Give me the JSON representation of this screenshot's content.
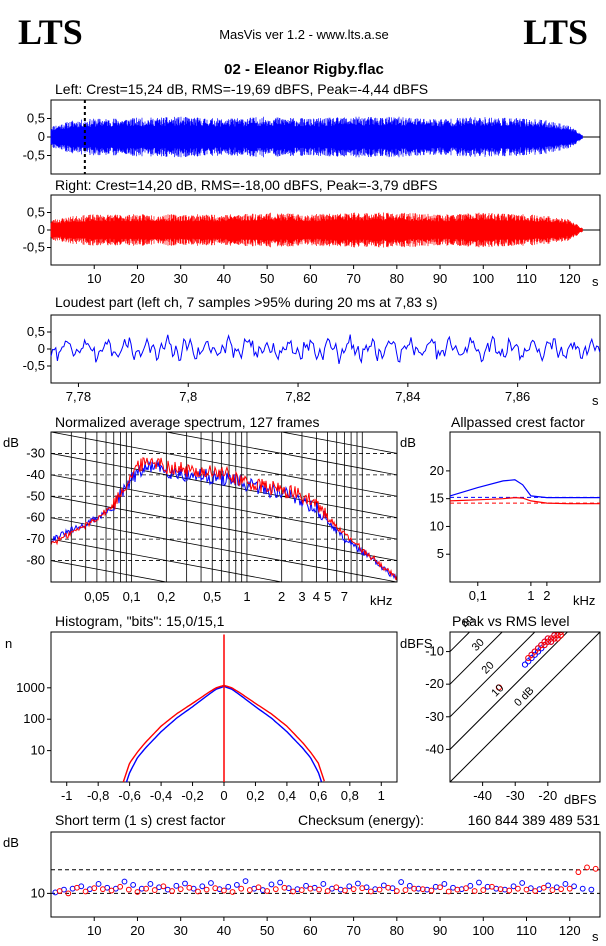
{
  "header": {
    "logo_left": "LTS",
    "logo_right": "LTS",
    "app_title": "MasVis ver 1.2 - www.lts.a.se",
    "file_title": "02 - Eleanor Rigby.flac"
  },
  "colors": {
    "left": "#0000ff",
    "right": "#ff0000",
    "grid": "#000000"
  },
  "chart_data": [
    {
      "id": "left-waveform",
      "type": "line",
      "title": "Left: Crest=15,24 dB, RMS=-19,69 dBFS, Peak=-4,44 dBFS",
      "xlim": [
        0,
        127
      ],
      "ylim": [
        -1,
        1
      ],
      "yticks": [
        0.5,
        0,
        -0.5
      ],
      "ytick_labels": [
        "0,5",
        "0",
        "-0,5"
      ],
      "marker_x": 7.83,
      "duration_s": 123,
      "envelope_x": [
        0,
        5,
        10,
        20,
        30,
        40,
        50,
        60,
        70,
        80,
        90,
        100,
        110,
        115,
        120,
        123
      ],
      "envelope_y": [
        0.3,
        0.45,
        0.5,
        0.52,
        0.55,
        0.5,
        0.55,
        0.5,
        0.55,
        0.55,
        0.5,
        0.55,
        0.5,
        0.45,
        0.3,
        0.05
      ]
    },
    {
      "id": "right-waveform",
      "type": "line",
      "title": "Right: Crest=14,20 dB, RMS=-18,00 dBFS, Peak=-3,79 dBFS",
      "xlim": [
        0,
        127
      ],
      "ylim": [
        -1,
        1
      ],
      "yticks": [
        0.5,
        0,
        -0.5
      ],
      "ytick_labels": [
        "0,5",
        "0",
        "-0,5"
      ],
      "xticks": [
        10,
        20,
        30,
        40,
        50,
        60,
        70,
        80,
        90,
        100,
        110,
        120
      ],
      "x_unit": "s",
      "duration_s": 123,
      "envelope_x": [
        0,
        5,
        10,
        20,
        30,
        40,
        50,
        60,
        70,
        80,
        90,
        100,
        110,
        115,
        120,
        123
      ],
      "envelope_y": [
        0.3,
        0.4,
        0.45,
        0.45,
        0.45,
        0.45,
        0.5,
        0.45,
        0.5,
        0.5,
        0.45,
        0.5,
        0.45,
        0.4,
        0.3,
        0.05
      ]
    },
    {
      "id": "loudest-part",
      "type": "line",
      "title": "Loudest part (left  ch, 7 samples >95% during 20 ms at 7,83 s)",
      "xlim": [
        7.775,
        7.875
      ],
      "ylim": [
        -1,
        1
      ],
      "yticks": [
        0.5,
        0,
        -0.5
      ],
      "ytick_labels": [
        "0,5",
        "0",
        "-0,5"
      ],
      "xticks": [
        7.78,
        7.8,
        7.82,
        7.84,
        7.86
      ],
      "xtick_labels": [
        "7,78",
        "7,8",
        "7,82",
        "7,84",
        "7,86"
      ],
      "x_unit": "s",
      "amplitude": 0.3
    },
    {
      "id": "spectrum",
      "type": "line",
      "title": "Normalized average spectrum, 127 frames",
      "y_unit": "dB",
      "x_unit": "kHz",
      "x_scale": "log",
      "xlim": [
        0.02,
        20
      ],
      "ylim": [
        -90,
        -20
      ],
      "yticks": [
        -30,
        -40,
        -50,
        -60,
        -70,
        -80
      ],
      "xticks": [
        0.05,
        0.1,
        0.2,
        0.5,
        1,
        2,
        3,
        4,
        5,
        7
      ],
      "xtick_labels": [
        "0,05",
        "0,1",
        "0,2",
        "0,5",
        "1",
        "2",
        "3",
        "4",
        "5",
        "7"
      ],
      "series": [
        {
          "channel": "left",
          "x": [
            0.02,
            0.03,
            0.05,
            0.07,
            0.08,
            0.1,
            0.12,
            0.15,
            0.2,
            0.3,
            0.5,
            0.7,
            1,
            1.5,
            2,
            3,
            4,
            5,
            7,
            10,
            15,
            20
          ],
          "y": [
            -70,
            -66,
            -60,
            -55,
            -50,
            -42,
            -38,
            -36,
            -38,
            -40,
            -41,
            -42,
            -45,
            -47,
            -48,
            -52,
            -56,
            -62,
            -70,
            -76,
            -84,
            -88
          ]
        },
        {
          "channel": "right",
          "x": [
            0.02,
            0.03,
            0.05,
            0.07,
            0.08,
            0.1,
            0.12,
            0.15,
            0.2,
            0.3,
            0.5,
            0.7,
            1,
            1.5,
            2,
            3,
            4,
            5,
            7,
            10,
            15,
            20
          ],
          "y": [
            -72,
            -67,
            -60,
            -54,
            -48,
            -40,
            -35,
            -33,
            -36,
            -38,
            -39,
            -40,
            -44,
            -46,
            -47,
            -50,
            -54,
            -60,
            -68,
            -75,
            -83,
            -88
          ]
        }
      ]
    },
    {
      "id": "allpassed-crest",
      "type": "line",
      "title": "Allpassed crest factor",
      "y_unit": "dB",
      "x_unit": "kHz",
      "x_scale": "log",
      "xlim": [
        0.03,
        20
      ],
      "ylim": [
        0,
        27
      ],
      "yticks": [
        20,
        15,
        10,
        5
      ],
      "xticks": [
        0.1,
        1,
        2
      ],
      "xtick_labels": [
        "0,1",
        "1",
        "2"
      ],
      "reference_left": 15.24,
      "reference_right": 14.2,
      "series": [
        {
          "channel": "left",
          "x": [
            0.03,
            0.1,
            0.3,
            0.5,
            0.7,
            1,
            2,
            5,
            20
          ],
          "y": [
            15.5,
            17,
            18.2,
            18.4,
            17.5,
            15.5,
            15.2,
            15.2,
            15.2
          ]
        },
        {
          "channel": "right",
          "x": [
            0.03,
            0.1,
            0.3,
            0.5,
            0.7,
            1,
            2,
            5,
            20
          ],
          "y": [
            14.6,
            14.8,
            15,
            15.2,
            15.1,
            14.6,
            14.2,
            14.1,
            14.1
          ]
        }
      ]
    },
    {
      "id": "histogram",
      "type": "line",
      "title": "Histogram, \"bits\": 15,0/15,1",
      "y_unit": "n",
      "y_scale": "log",
      "xlim": [
        -1.1,
        1.1
      ],
      "ylim": [
        1,
        60000
      ],
      "yticks": [
        1000,
        100,
        10
      ],
      "xticks": [
        -1,
        -0.8,
        -0.6,
        -0.4,
        -0.2,
        0,
        0.2,
        0.4,
        0.6,
        0.8,
        1
      ],
      "xtick_labels": [
        "-1",
        "-0,8",
        "-0,6",
        "-0,4",
        "-0,2",
        "0",
        "0,2",
        "0,4",
        "0,6",
        "0,8",
        "1"
      ],
      "series": [
        {
          "channel": "left",
          "x": [
            -0.62,
            -0.6,
            -0.55,
            -0.5,
            -0.4,
            -0.3,
            -0.2,
            -0.1,
            -0.05,
            0,
            0.05,
            0.1,
            0.2,
            0.3,
            0.4,
            0.5,
            0.55,
            0.6,
            0.62
          ],
          "y": [
            1,
            2,
            6,
            12,
            40,
            110,
            250,
            600,
            900,
            1100,
            900,
            600,
            250,
            110,
            40,
            12,
            6,
            2,
            1
          ]
        },
        {
          "channel": "right",
          "x": [
            -0.64,
            -0.6,
            -0.55,
            -0.5,
            -0.4,
            -0.3,
            -0.2,
            -0.1,
            -0.05,
            0,
            0.05,
            0.1,
            0.2,
            0.3,
            0.4,
            0.5,
            0.55,
            0.6,
            0.64
          ],
          "y": [
            1,
            4,
            9,
            18,
            60,
            150,
            320,
            700,
            1000,
            1200,
            1000,
            700,
            320,
            150,
            60,
            18,
            9,
            4,
            1
          ]
        }
      ],
      "zero_spike": 50000
    },
    {
      "id": "peak-vs-rms",
      "type": "scatter",
      "title": "Peak vs RMS level",
      "y_unit": "dBFS",
      "x_unit": "dBFS",
      "xlim": [
        -50,
        -4
      ],
      "ylim": [
        -50,
        -4
      ],
      "yticks": [
        -10,
        -20,
        -30,
        -40
      ],
      "xticks": [
        -40,
        -30,
        -20
      ],
      "diagonal_labels": [
        "40",
        "30",
        "20",
        "10",
        "0 dB"
      ],
      "diagonal_offsets": [
        40,
        30,
        20,
        10,
        0
      ],
      "series": [
        {
          "channel": "left",
          "x": [
            -27,
            -26,
            -25,
            -25,
            -24,
            -24,
            -23,
            -23,
            -22,
            -22,
            -21,
            -21,
            -20,
            -20,
            -19,
            -19,
            -18,
            -18,
            -17
          ],
          "y": [
            -14,
            -13,
            -12,
            -11,
            -11,
            -10,
            -10,
            -9,
            -9,
            -8,
            -8,
            -7,
            -7,
            -6,
            -6,
            -7,
            -6,
            -5,
            -5
          ]
        },
        {
          "channel": "right",
          "x": [
            -35,
            -26,
            -25,
            -24,
            -23,
            -22,
            -21,
            -21,
            -20,
            -20,
            -19,
            -19,
            -18,
            -18,
            -17,
            -17,
            -16,
            -16
          ],
          "y": [
            -21,
            -12,
            -11,
            -10,
            -9,
            -8,
            -8,
            -7,
            -7,
            -6,
            -6,
            -7,
            -6,
            -5,
            -5,
            -6,
            -5,
            -4
          ]
        }
      ]
    },
    {
      "id": "short-term-crest",
      "type": "scatter",
      "title": "Short term (1 s) crest factor",
      "checksum_label": "Checksum (energy):",
      "checksum_value": "160 844 389 489 531",
      "y_unit": "dB",
      "x_unit": "s",
      "xlim": [
        0,
        127
      ],
      "ylim": [
        5,
        23
      ],
      "yticks": [
        10
      ],
      "dashed_y": [
        10,
        15
      ],
      "xticks": [
        10,
        20,
        30,
        40,
        50,
        60,
        70,
        80,
        90,
        100,
        110,
        120
      ],
      "y_left": [
        10.2,
        10.8,
        11,
        11.5,
        10.9,
        12,
        11.2,
        11,
        12.5,
        11.8,
        11,
        12,
        11.3,
        10.8,
        11.6,
        12.1,
        11,
        11.5,
        12.2,
        10.9,
        11.4,
        11.8,
        12.6,
        11,
        10.7,
        11.9,
        12.3,
        11.1,
        10.9,
        11.6,
        11.2,
        12,
        11,
        10.8,
        11.5,
        12.1,
        11.3,
        10.9,
        11.7,
        11.1,
        12.4,
        11.6,
        11,
        10.8,
        11.4,
        12,
        11.2,
        10.9,
        11.6,
        12.3,
        11.4,
        11,
        10.8,
        11.5,
        12.2,
        11.1,
        10.9,
        11.7,
        11.3,
        12,
        11.5,
        11,
        10.8
      ],
      "y_right": [
        10.5,
        10,
        11.2,
        10.4,
        11.1,
        10.9,
        10.6,
        11.4,
        10.8,
        10.3,
        11,
        10.7,
        11.5,
        10.5,
        10.9,
        11.2,
        10.4,
        10.8,
        11.1,
        10.6,
        10.3,
        11,
        10.7,
        11.3,
        10.5,
        10.9,
        11.2,
        10.4,
        10.7,
        11,
        10.8,
        10.5,
        11.3,
        10.6,
        10.9,
        11.1,
        10.4,
        10.8,
        11.2,
        10.5,
        10.7,
        11,
        10.9,
        10.6,
        11.3,
        10.4,
        10.8,
        11.1,
        10.5,
        10.7,
        11.4,
        10.9,
        10.6,
        11,
        10.8,
        10.5,
        11.2,
        10.7,
        10.9,
        11,
        14.5,
        15.5,
        15.2
      ]
    }
  ]
}
